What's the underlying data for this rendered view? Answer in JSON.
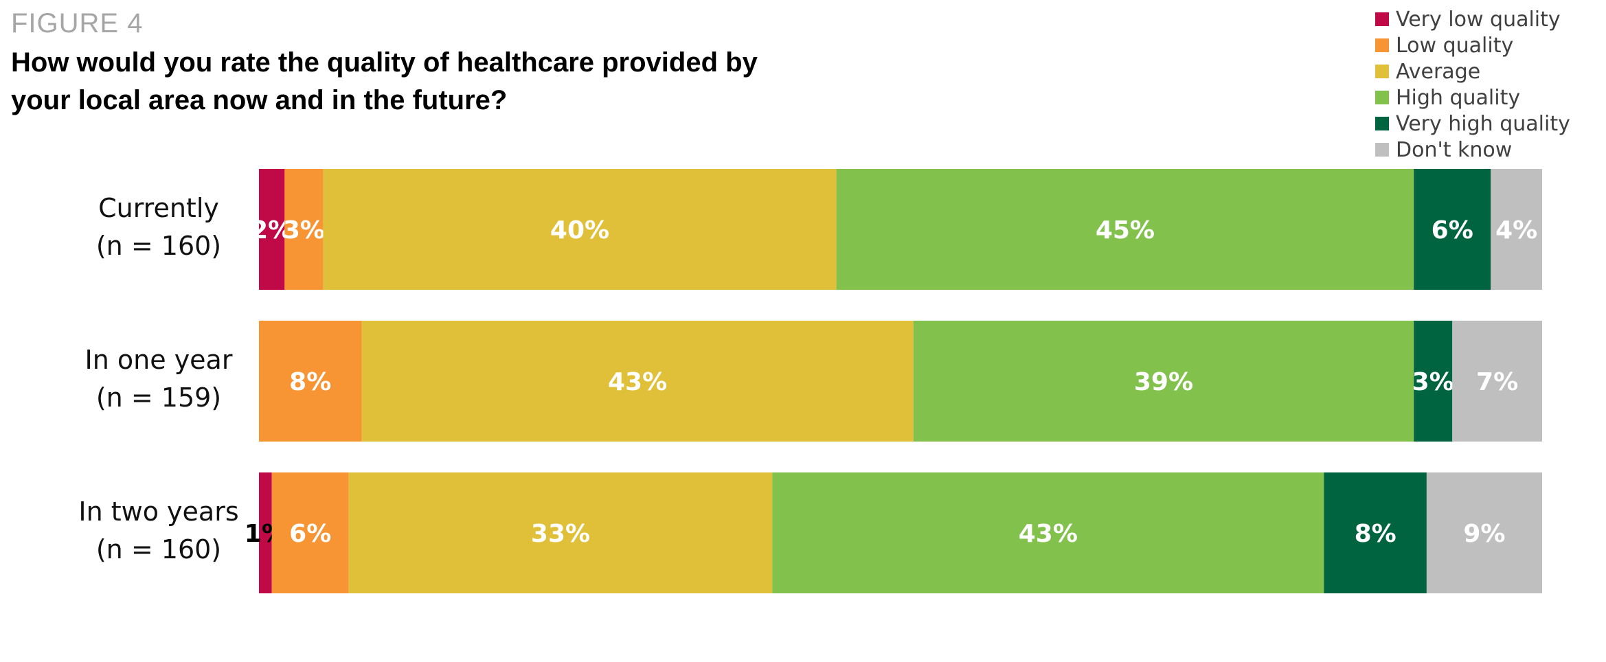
{
  "figure_label": "FIGURE 4",
  "chart_data": {
    "type": "bar",
    "orientation": "horizontal",
    "stacked": true,
    "title": "How would you rate the quality of healthcare provided by your local area now and in the future?",
    "categories": [
      [
        "Currently",
        "(n = 160)"
      ],
      [
        "In one year",
        "(n = 159)"
      ],
      [
        "In two years",
        "(n = 160)"
      ]
    ],
    "series": [
      {
        "name": "Very low quality",
        "color": "#C00A48",
        "values": [
          2,
          0,
          1
        ],
        "labels": [
          "2%",
          "",
          "1%"
        ],
        "label_colors": [
          "#ffffff",
          "#ffffff",
          "#000000"
        ]
      },
      {
        "name": "Low quality",
        "color": "#F79433",
        "values": [
          3,
          8,
          6
        ],
        "labels": [
          "3%",
          "8%",
          "6%"
        ],
        "label_colors": [
          "#ffffff",
          "#ffffff",
          "#ffffff"
        ]
      },
      {
        "name": "Average",
        "color": "#E0C038",
        "values": [
          40,
          43,
          33
        ],
        "labels": [
          "40%",
          "43%",
          "33%"
        ],
        "label_colors": [
          "#ffffff",
          "#ffffff",
          "#ffffff"
        ]
      },
      {
        "name": "High quality",
        "color": "#82C24C",
        "values": [
          45,
          39,
          43
        ],
        "labels": [
          "45%",
          "39%",
          "43%"
        ],
        "label_colors": [
          "#ffffff",
          "#ffffff",
          "#ffffff"
        ]
      },
      {
        "name": "Very high quality",
        "color": "#006440",
        "values": [
          6,
          3,
          8
        ],
        "labels": [
          "6%",
          "3%",
          "8%"
        ],
        "label_colors": [
          "#ffffff",
          "#ffffff",
          "#ffffff"
        ]
      },
      {
        "name": "Don't know",
        "color": "#BFBFBF",
        "values": [
          4,
          7,
          9
        ],
        "labels": [
          "4%",
          "7%",
          "9%"
        ],
        "label_colors": [
          "#ffffff",
          "#ffffff",
          "#ffffff"
        ]
      }
    ],
    "xlim": [
      0,
      100
    ],
    "grid": false,
    "legend_position": "top-right"
  }
}
